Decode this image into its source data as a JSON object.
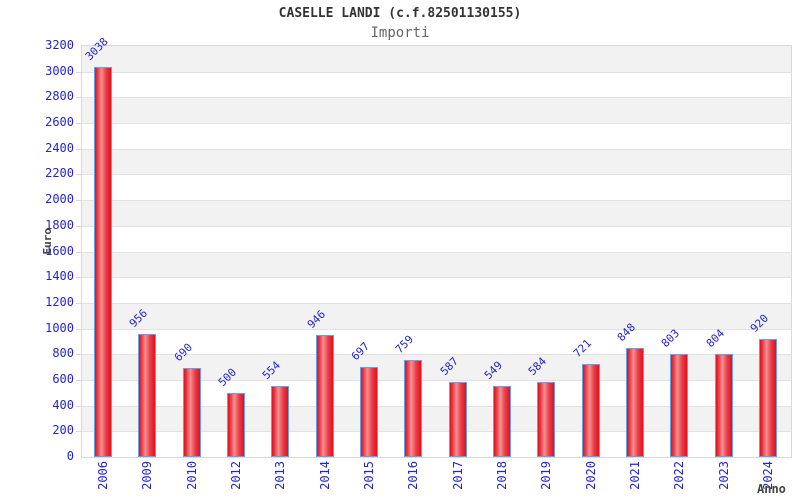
{
  "title": "CASELLE LANDI (c.f.82501130155)",
  "subtitle": "Importi",
  "chart_data": {
    "type": "bar",
    "categories": [
      "2006",
      "2009",
      "2010",
      "2012",
      "2013",
      "2014",
      "2015",
      "2016",
      "2017",
      "2018",
      "2019",
      "2020",
      "2021",
      "2022",
      "2023",
      "2024"
    ],
    "values": [
      3038,
      956,
      690,
      500,
      554,
      946,
      697,
      759,
      587,
      549,
      584,
      721,
      848,
      803,
      804,
      920
    ],
    "title": "CASELLE LANDI (c.f.82501130155)",
    "subtitle": "Importi",
    "xlabel": "Anno",
    "ylabel": "Euro",
    "ylim": [
      0,
      3200
    ],
    "ytick_step": 200,
    "grid": true,
    "legend": "none",
    "bands_alternating": true,
    "colors": {
      "bar_edge_red": "#e1101f",
      "bar_mid_red": "#ea4049",
      "bar_light_red": "#f59093",
      "bar_border_blue": "#64a0f0",
      "label_blue": "#2424cc",
      "axis_title_gray": "#444444",
      "band_gray": "#f2f2f2",
      "grid_gray": "#e2e2e2",
      "border_gray": "#d9d9d9"
    }
  }
}
